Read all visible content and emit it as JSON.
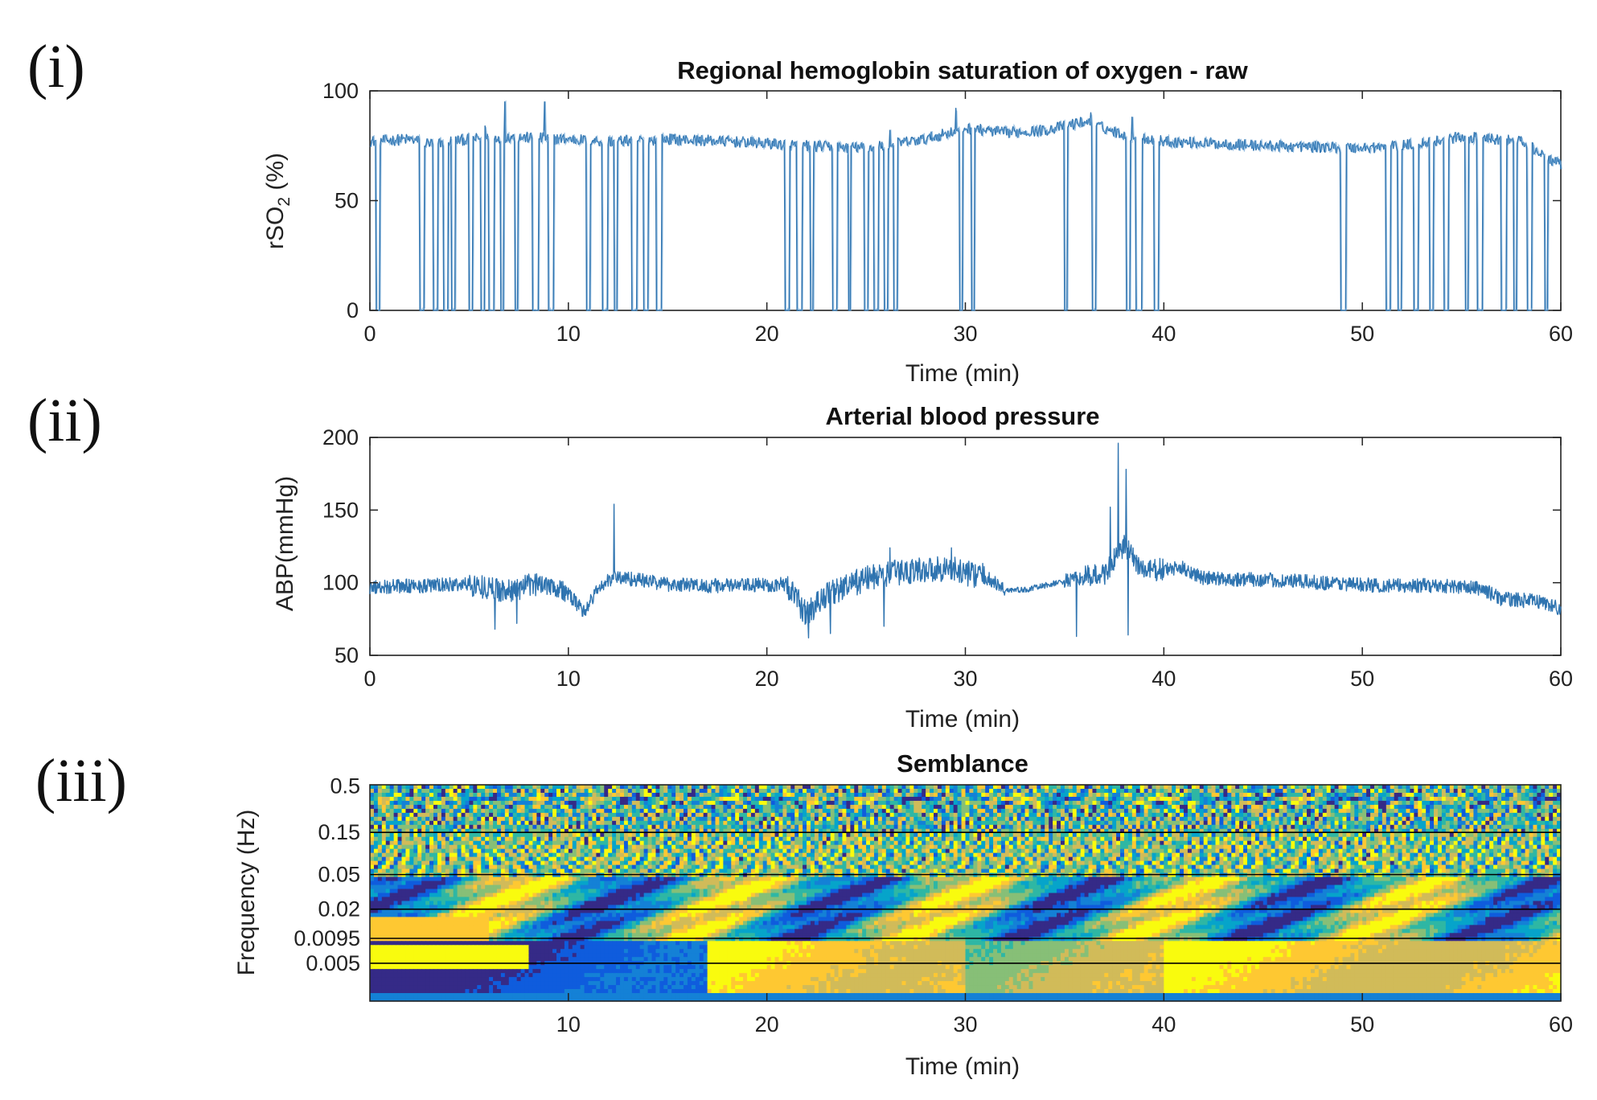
{
  "panel_labels": [
    "(i)",
    "(ii)",
    "(iii)"
  ],
  "colors": {
    "line": "#2f74b0",
    "line_light": "#6fa7d6",
    "axis": "#222222",
    "grid_line": "#000000",
    "parula": [
      "#352a87",
      "#0f5cdd",
      "#1481d6",
      "#06a4ca",
      "#2eb7a4",
      "#87bf77",
      "#d1bb59",
      "#fec832",
      "#f9fb0e"
    ]
  },
  "chart_data": [
    {
      "type": "line",
      "title": "Regional hemoglobin saturation of oxygen - raw",
      "ylabel": "rSO",
      "ylabel_sub": "2",
      "ylabel_suffix": " (%)",
      "xlabel": "Time (min)",
      "xlim": [
        0,
        60
      ],
      "ylim": [
        0,
        100
      ],
      "xticks": [
        0,
        10,
        20,
        30,
        40,
        50,
        60
      ],
      "yticks": [
        0,
        50,
        100
      ],
      "baseline": [
        [
          0,
          77
        ],
        [
          2,
          78
        ],
        [
          3,
          76
        ],
        [
          5,
          78
        ],
        [
          7,
          79
        ],
        [
          10,
          78
        ],
        [
          12,
          77
        ],
        [
          15,
          78
        ],
        [
          18,
          77
        ],
        [
          20,
          76
        ],
        [
          22,
          75
        ],
        [
          25,
          74
        ],
        [
          28,
          78
        ],
        [
          30,
          83
        ],
        [
          32,
          81
        ],
        [
          34,
          82
        ],
        [
          36,
          86
        ],
        [
          38,
          80
        ],
        [
          40,
          77
        ],
        [
          45,
          75
        ],
        [
          50,
          74
        ],
        [
          52,
          75
        ],
        [
          55,
          79
        ],
        [
          58,
          77
        ],
        [
          60,
          66
        ]
      ],
      "dropouts": [
        0.3,
        2.5,
        3.2,
        3.7,
        4.1,
        5.0,
        5.6,
        6.0,
        6.6,
        7.3,
        8.2,
        9.0,
        10.9,
        11.7,
        12.3,
        13.2,
        13.8,
        14.4,
        20.9,
        21.5,
        22.2,
        23.3,
        24.1,
        24.9,
        25.4,
        25.9,
        26.4,
        29.7,
        30.3,
        35.0,
        36.4,
        38.1,
        38.6,
        39.5,
        48.9,
        51.2,
        51.8,
        52.6,
        53.4,
        54.1,
        55.2,
        55.8,
        57.0,
        57.6,
        58.3,
        59.2
      ],
      "spikes": [
        [
          6.8,
          95
        ],
        [
          8.8,
          95
        ],
        [
          29.5,
          92
        ],
        [
          36.3,
          90
        ],
        [
          38.4,
          88
        ],
        [
          5.8,
          84
        ],
        [
          26.2,
          82
        ]
      ]
    },
    {
      "type": "line",
      "title": "Arterial blood pressure",
      "ylabel": "ABP(mmHg)",
      "xlabel": "Time (min)",
      "xlim": [
        0,
        60
      ],
      "ylim": [
        50,
        200
      ],
      "xticks": [
        0,
        10,
        20,
        30,
        40,
        50,
        60
      ],
      "yticks": [
        50,
        100,
        150,
        200
      ],
      "baseline": [
        [
          0,
          97
        ],
        [
          3,
          98
        ],
        [
          5,
          99
        ],
        [
          7,
          94
        ],
        [
          8,
          98
        ],
        [
          9,
          100
        ],
        [
          10,
          92
        ],
        [
          10.8,
          80
        ],
        [
          11.5,
          96
        ],
        [
          12.3,
          104
        ],
        [
          13,
          103
        ],
        [
          15,
          99
        ],
        [
          17,
          98
        ],
        [
          19,
          98
        ],
        [
          21,
          99
        ],
        [
          22,
          78
        ],
        [
          23,
          92
        ],
        [
          24,
          97
        ],
        [
          25,
          103
        ],
        [
          27,
          108
        ],
        [
          29,
          110
        ],
        [
          31,
          104
        ],
        [
          32,
          95
        ],
        [
          33,
          95
        ],
        [
          35,
          101
        ],
        [
          37,
          106
        ],
        [
          38,
          125
        ],
        [
          39,
          108
        ],
        [
          41,
          110
        ],
        [
          42,
          103
        ],
        [
          45,
          102
        ],
        [
          48,
          100
        ],
        [
          51,
          98
        ],
        [
          54,
          98
        ],
        [
          56,
          96
        ],
        [
          57,
          89
        ],
        [
          59,
          87
        ],
        [
          60,
          82
        ]
      ],
      "spikes": [
        [
          12.3,
          154
        ],
        [
          37.3,
          152
        ],
        [
          37.7,
          196
        ],
        [
          38.1,
          178
        ],
        [
          38.4,
          120
        ],
        [
          26.2,
          124
        ],
        [
          29.3,
          124
        ]
      ],
      "dips": [
        [
          6.3,
          68
        ],
        [
          7.4,
          72
        ],
        [
          22.1,
          62
        ],
        [
          23.2,
          65
        ],
        [
          25.9,
          70
        ],
        [
          35.6,
          63
        ],
        [
          38.2,
          64
        ]
      ]
    },
    {
      "type": "heatmap",
      "title": "Semblance",
      "ylabel": "Frequency (Hz)",
      "xlabel": "Time (min)",
      "xlim": [
        0,
        60
      ],
      "xticks": [
        10,
        20,
        30,
        40,
        50,
        60
      ],
      "yticks": [
        "0.5",
        "0.15",
        "0.05",
        "0.02",
        "0.0095",
        "0.005"
      ],
      "band_lines": [
        "0.15",
        "0.05",
        "0.02",
        "0.0095",
        "0.005"
      ],
      "colormap": "parula",
      "value_range": [
        -1,
        1
      ]
    }
  ]
}
